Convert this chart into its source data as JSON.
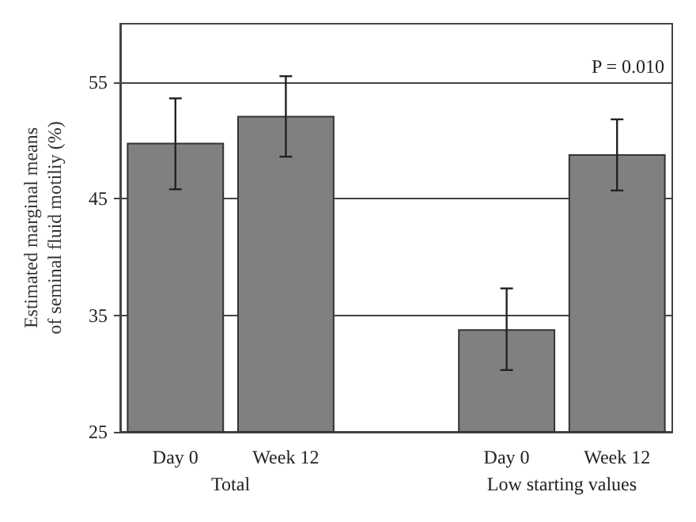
{
  "chart_data": {
    "type": "bar",
    "ylabel": "Estimated marginal means\nof seminal fluid motiliy (%)",
    "categories": [
      "Day 0",
      "Week 12",
      null,
      "Day 0",
      "Week 12"
    ],
    "values": [
      49.8,
      52.1,
      null,
      33.8,
      48.8
    ],
    "errors": [
      [
        45.8,
        53.6
      ],
      [
        48.6,
        55.5
      ],
      null,
      [
        30.3,
        37.3
      ],
      [
        45.7,
        51.8
      ]
    ],
    "color": "#808080",
    "ylim": [
      25,
      60
    ],
    "yticks": [
      25,
      35,
      45,
      55
    ],
    "grid": "y",
    "annotations": [
      "Total",
      "Low starting values",
      "P = 0.010"
    ]
  }
}
